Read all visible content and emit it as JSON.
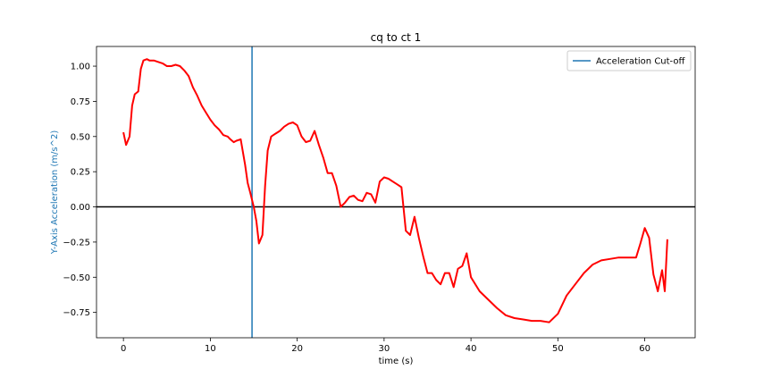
{
  "chart_data": {
    "type": "line",
    "title": "cq to ct 1",
    "xlabel": "time (s)",
    "ylabel": "Y-Axis Acceleration (m/s^2)",
    "xlim": [
      -3.1,
      65.8
    ],
    "ylim": [
      -0.93,
      1.14
    ],
    "x_ticks": [
      0,
      10,
      20,
      30,
      40,
      50,
      60
    ],
    "y_ticks": [
      -0.75,
      -0.5,
      -0.25,
      0.0,
      0.25,
      0.5,
      0.75,
      1.0
    ],
    "grid": false,
    "legend_position": "top-right",
    "legend": [
      {
        "label": "Acceleration Cut-off",
        "color": "#1f77b4"
      }
    ],
    "colors": {
      "series": "#ff0000",
      "cutoff": "#1f77b4",
      "zero_line": "#000000",
      "ylabel": "#1f77b4"
    },
    "cutoff_x": 14.8,
    "zero_line_y": 0.0,
    "series": [
      {
        "x": [
          0,
          0.3,
          0.7,
          1.0,
          1.3,
          1.7,
          2.0,
          2.3,
          2.7,
          3.0,
          3.5,
          4.0,
          4.5,
          5.0,
          5.5,
          6.0,
          6.5,
          7.0,
          7.5,
          8.0,
          8.5,
          9.0,
          9.5,
          10.0,
          10.5,
          11.0,
          11.5,
          12.0,
          12.3,
          12.7,
          13.0,
          13.5,
          14.0,
          14.3,
          14.6,
          15.0,
          15.3,
          15.6,
          16.0,
          16.3,
          16.6,
          17.0,
          17.5,
          18.0,
          18.5,
          19.0,
          19.5,
          20.0,
          20.5,
          21.0,
          21.5,
          22.0,
          22.5,
          23.0,
          23.5,
          24.0,
          24.5,
          25.0,
          25.5,
          26.0,
          26.5,
          27.0,
          27.5,
          28.0,
          28.5,
          29.0,
          29.5,
          30.0,
          30.5,
          31.0,
          31.5,
          32.0,
          32.5,
          33.0,
          33.5,
          34.0,
          34.5,
          35.0,
          35.5,
          36.0,
          36.5,
          37.0,
          37.5,
          38.0,
          38.5,
          39.0,
          39.5,
          40.0,
          41.0,
          42.0,
          43.0,
          44.0,
          45.0,
          46.0,
          47.0,
          48.0,
          49.0,
          50.0,
          51.0,
          52.0,
          53.0,
          54.0,
          55.0,
          56.0,
          57.0,
          58.0,
          58.5,
          59.0,
          59.5,
          60.0,
          60.5,
          61.0,
          61.5,
          62.0,
          62.3,
          62.6
        ],
        "y": [
          0.53,
          0.44,
          0.5,
          0.72,
          0.8,
          0.82,
          0.98,
          1.04,
          1.05,
          1.04,
          1.04,
          1.03,
          1.02,
          1.0,
          1.0,
          1.01,
          1.0,
          0.97,
          0.93,
          0.85,
          0.79,
          0.72,
          0.67,
          0.62,
          0.58,
          0.55,
          0.51,
          0.5,
          0.48,
          0.46,
          0.47,
          0.48,
          0.3,
          0.17,
          0.1,
          0.0,
          -0.1,
          -0.26,
          -0.2,
          0.15,
          0.4,
          0.5,
          0.52,
          0.54,
          0.57,
          0.59,
          0.6,
          0.58,
          0.5,
          0.46,
          0.47,
          0.54,
          0.44,
          0.35,
          0.24,
          0.24,
          0.15,
          0.0,
          0.03,
          0.07,
          0.08,
          0.05,
          0.04,
          0.1,
          0.09,
          0.03,
          0.18,
          0.21,
          0.2,
          0.18,
          0.16,
          0.14,
          -0.17,
          -0.2,
          -0.07,
          -0.22,
          -0.35,
          -0.47,
          -0.47,
          -0.52,
          -0.55,
          -0.47,
          -0.47,
          -0.57,
          -0.44,
          -0.42,
          -0.33,
          -0.5,
          -0.6,
          -0.66,
          -0.72,
          -0.77,
          -0.79,
          -0.8,
          -0.81,
          -0.81,
          -0.82,
          -0.76,
          -0.63,
          -0.55,
          -0.47,
          -0.41,
          -0.38,
          -0.37,
          -0.36,
          -0.36,
          -0.36,
          -0.36,
          -0.26,
          -0.15,
          -0.22,
          -0.48,
          -0.6,
          -0.45,
          -0.6,
          -0.23
        ]
      }
    ]
  }
}
